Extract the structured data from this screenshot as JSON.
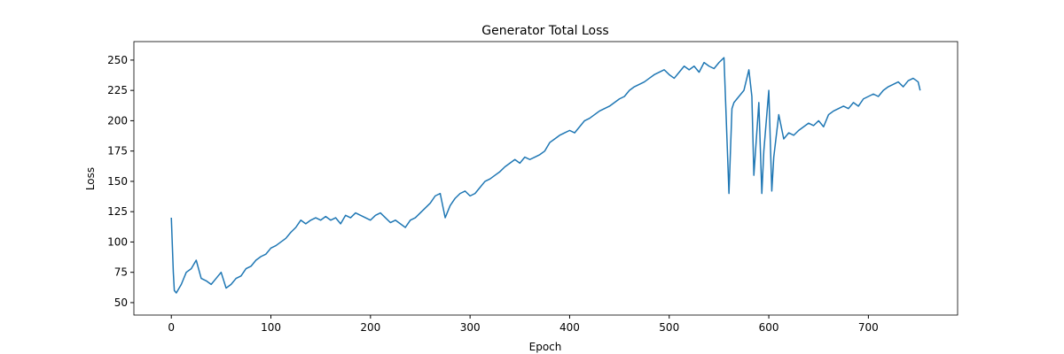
{
  "chart_data": {
    "type": "line",
    "title": "Generator Total Loss",
    "x_label": "Epoch",
    "y_label": "Loss",
    "x": [
      0,
      2,
      3,
      5,
      10,
      15,
      20,
      25,
      30,
      35,
      40,
      45,
      50,
      55,
      60,
      65,
      70,
      75,
      80,
      85,
      90,
      95,
      100,
      105,
      110,
      115,
      120,
      125,
      130,
      135,
      140,
      145,
      150,
      155,
      160,
      165,
      170,
      175,
      180,
      185,
      190,
      195,
      200,
      205,
      210,
      215,
      220,
      225,
      230,
      235,
      240,
      245,
      250,
      255,
      260,
      265,
      270,
      275,
      280,
      285,
      290,
      295,
      300,
      305,
      310,
      315,
      320,
      325,
      330,
      335,
      340,
      345,
      350,
      355,
      360,
      365,
      370,
      375,
      380,
      385,
      390,
      395,
      400,
      405,
      410,
      415,
      420,
      425,
      430,
      435,
      440,
      445,
      450,
      455,
      460,
      465,
      470,
      475,
      480,
      485,
      490,
      495,
      500,
      505,
      510,
      515,
      520,
      525,
      530,
      535,
      540,
      545,
      550,
      555,
      560,
      563,
      565,
      570,
      575,
      580,
      583,
      585,
      590,
      593,
      595,
      600,
      603,
      605,
      610,
      615,
      620,
      625,
      630,
      635,
      640,
      645,
      650,
      655,
      660,
      665,
      670,
      675,
      680,
      685,
      690,
      695,
      700,
      705,
      710,
      715,
      720,
      725,
      730,
      735,
      740,
      745,
      750,
      752
    ],
    "series": [
      {
        "name": "Generator Total Loss",
        "color": "#1f77b4",
        "values": [
          120,
          75,
          60,
          58,
          65,
          75,
          78,
          85,
          70,
          68,
          65,
          70,
          75,
          62,
          65,
          70,
          72,
          78,
          80,
          85,
          88,
          90,
          95,
          97,
          100,
          103,
          108,
          112,
          118,
          115,
          118,
          120,
          118,
          121,
          118,
          120,
          115,
          122,
          120,
          124,
          122,
          120,
          118,
          122,
          124,
          120,
          116,
          118,
          115,
          112,
          118,
          120,
          124,
          128,
          132,
          138,
          140,
          120,
          130,
          136,
          140,
          142,
          138,
          140,
          145,
          150,
          152,
          155,
          158,
          162,
          165,
          168,
          165,
          170,
          168,
          170,
          172,
          175,
          182,
          185,
          188,
          190,
          192,
          190,
          195,
          200,
          202,
          205,
          208,
          210,
          212,
          215,
          218,
          220,
          225,
          228,
          230,
          232,
          235,
          238,
          240,
          242,
          238,
          235,
          240,
          245,
          242,
          245,
          240,
          248,
          245,
          243,
          248,
          252,
          140,
          210,
          215,
          220,
          225,
          242,
          220,
          155,
          215,
          140,
          175,
          225,
          142,
          170,
          205,
          185,
          190,
          188,
          192,
          195,
          198,
          196,
          200,
          195,
          205,
          208,
          210,
          212,
          210,
          215,
          212,
          218,
          220,
          222,
          220,
          225,
          228,
          230,
          232,
          228,
          233,
          235,
          232,
          225
        ]
      }
    ],
    "xlim": [
      -37.6,
      789.6
    ],
    "ylim": [
      39.75,
      265.25
    ],
    "xticks": [
      0,
      100,
      200,
      300,
      400,
      500,
      600,
      700
    ],
    "yticks": [
      50,
      75,
      100,
      125,
      150,
      175,
      200,
      225,
      250
    ]
  }
}
